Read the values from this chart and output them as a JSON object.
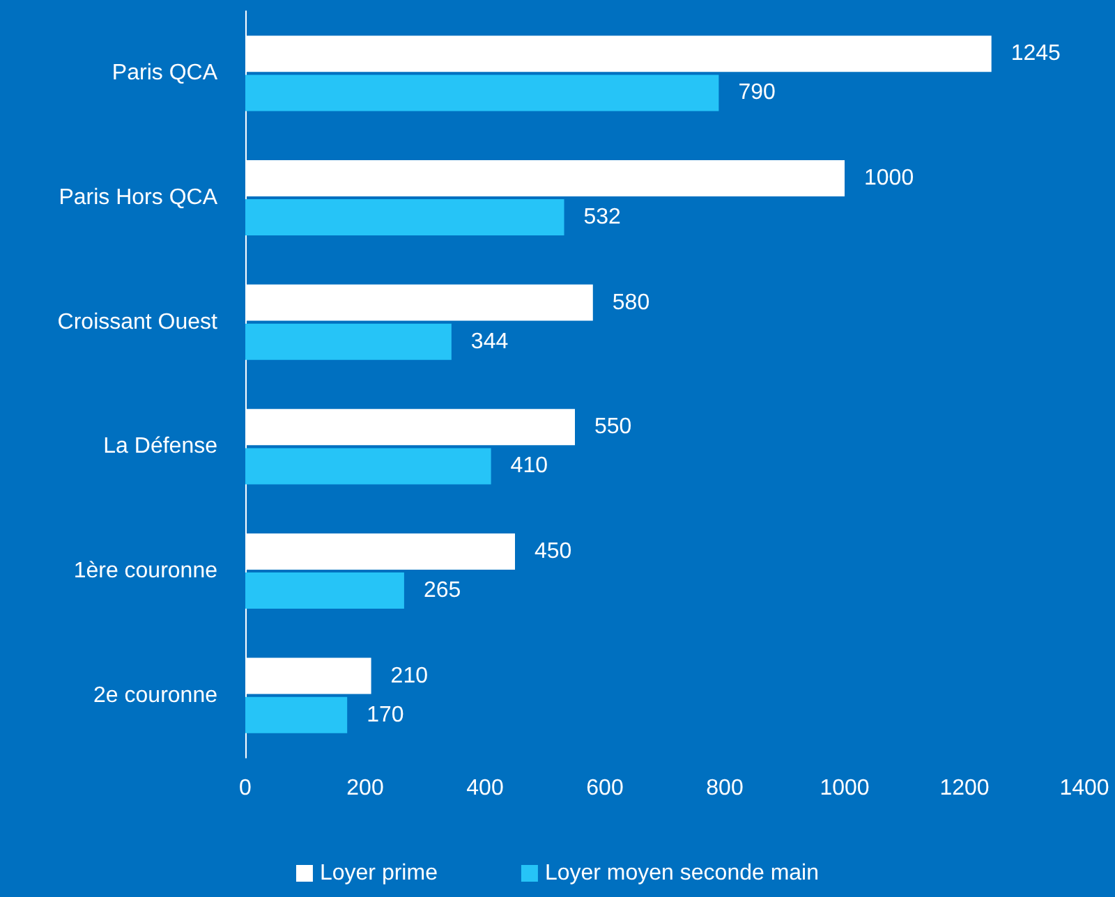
{
  "chart_data": {
    "type": "bar",
    "orientation": "horizontal",
    "categories": [
      "Paris QCA",
      "Paris Hors QCA",
      "Croissant Ouest",
      "La Défense",
      "1ère couronne",
      "2e couronne"
    ],
    "series": [
      {
        "name": "Loyer prime",
        "color": "#ffffff",
        "values": [
          1245,
          1000,
          580,
          550,
          450,
          210
        ]
      },
      {
        "name": "Loyer moyen seconde main",
        "color": "#26c4f7",
        "values": [
          790,
          532,
          344,
          410,
          265,
          170
        ]
      }
    ],
    "xlim": [
      0,
      1400
    ],
    "xticks": [
      0,
      200,
      400,
      600,
      800,
      1000,
      1200,
      1400
    ],
    "grid": false,
    "legend": "bottom",
    "data_labels": true
  }
}
